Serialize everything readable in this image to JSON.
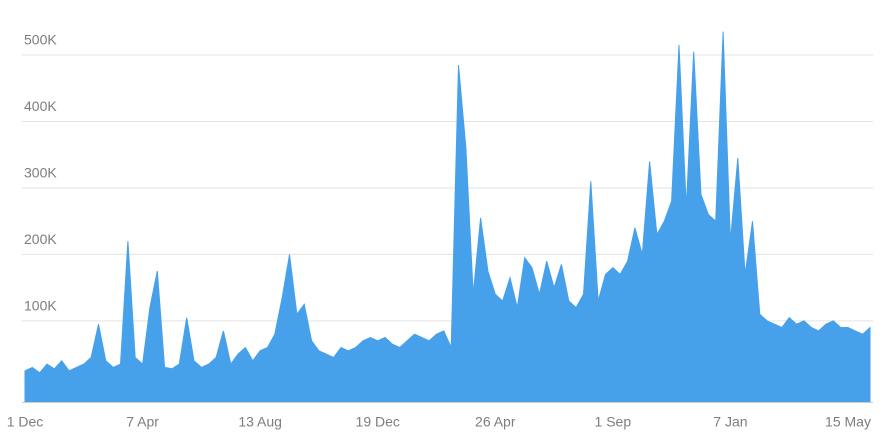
{
  "chart_data": {
    "type": "area",
    "color": "#47a0ea",
    "grid": true,
    "categories": [
      "1 Dec",
      null,
      null,
      null,
      null,
      null,
      null,
      null,
      null,
      null,
      null,
      null,
      null,
      null,
      null,
      null,
      "7 Apr",
      null,
      null,
      null,
      null,
      null,
      null,
      null,
      null,
      null,
      null,
      null,
      null,
      null,
      null,
      null,
      "13 Aug",
      null,
      null,
      null,
      null,
      null,
      null,
      null,
      null,
      null,
      null,
      null,
      null,
      null,
      null,
      null,
      "19 Dec",
      null,
      null,
      null,
      null,
      null,
      null,
      null,
      null,
      null,
      null,
      null,
      null,
      null,
      null,
      null,
      "26 Apr",
      null,
      null,
      null,
      null,
      null,
      null,
      null,
      null,
      null,
      null,
      null,
      null,
      null,
      null,
      null,
      "1 Sep",
      null,
      null,
      null,
      null,
      null,
      null,
      null,
      null,
      null,
      null,
      null,
      null,
      null,
      null,
      null,
      "7 Jan",
      null,
      null,
      null,
      null,
      null,
      null,
      null,
      null,
      null,
      null,
      null,
      null,
      null,
      null,
      null,
      "15 May",
      null,
      null,
      null
    ],
    "values": [
      25000,
      30000,
      22000,
      35000,
      28000,
      40000,
      25000,
      30000,
      35000,
      45000,
      95000,
      40000,
      30000,
      35000,
      220000,
      45000,
      35000,
      120000,
      175000,
      30000,
      28000,
      35000,
      105000,
      40000,
      30000,
      35000,
      45000,
      85000,
      35000,
      50000,
      60000,
      40000,
      55000,
      60000,
      80000,
      135000,
      200000,
      110000,
      125000,
      70000,
      55000,
      50000,
      45000,
      60000,
      55000,
      60000,
      70000,
      75000,
      70000,
      75000,
      65000,
      60000,
      70000,
      80000,
      75000,
      70000,
      80000,
      85000,
      60000,
      485000,
      360000,
      140000,
      255000,
      175000,
      140000,
      130000,
      165000,
      120000,
      195000,
      180000,
      140000,
      190000,
      150000,
      185000,
      130000,
      120000,
      140000,
      310000,
      130000,
      170000,
      180000,
      170000,
      190000,
      240000,
      200000,
      340000,
      230000,
      250000,
      280000,
      515000,
      270000,
      505000,
      290000,
      260000,
      250000,
      535000,
      220000,
      345000,
      170000,
      250000,
      110000,
      100000,
      95000,
      90000,
      105000,
      95000,
      100000,
      90000,
      85000,
      95000,
      100000,
      90000,
      90000,
      85000,
      80000,
      90000
    ],
    "ylim": [
      -22000,
      540000
    ],
    "yticks": [
      {
        "value": 100000,
        "label": "100K"
      },
      {
        "value": 200000,
        "label": "200K"
      },
      {
        "value": 300000,
        "label": "300K"
      },
      {
        "value": 400000,
        "label": "400K"
      },
      {
        "value": 500000,
        "label": "500K"
      }
    ]
  }
}
